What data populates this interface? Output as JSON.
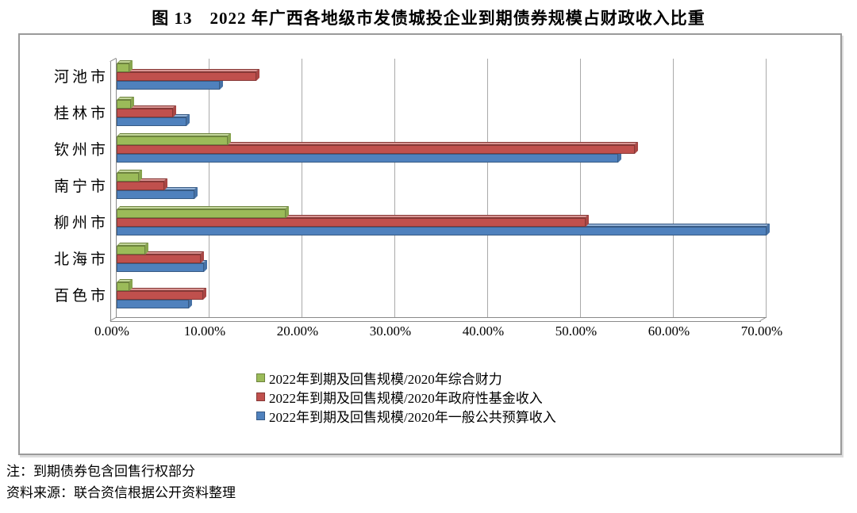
{
  "title": "图 13　2022 年广西各地级市发债城投企业到期债券规模占财政收入比重",
  "notes": [
    "注：到期债券包含回售行权部分",
    "资料来源：联合资信根据公开资料整理"
  ],
  "colors": {
    "gridline": "#aaaaaa",
    "wall": "#8a8a8a",
    "box_border": "#9a9a9a",
    "series_green": "#9BBB59",
    "series_red": "#C0504D",
    "series_blue": "#4F81BD"
  },
  "chart_data": {
    "type": "bar",
    "orientation": "horizontal",
    "title": "图 13　2022 年广西各地级市发债城投企业到期债券规模占财政收入比重",
    "xlabel": "",
    "ylabel": "",
    "xlim": [
      0,
      70
    ],
    "grid": true,
    "legend_position": "bottom",
    "x_ticks": [
      "0.00%",
      "10.00%",
      "20.00%",
      "30.00%",
      "40.00%",
      "50.00%",
      "60.00%",
      "70.00%"
    ],
    "categories": [
      "河池市",
      "桂林市",
      "钦州市",
      "南宁市",
      "柳州市",
      "北海市",
      "百色市"
    ],
    "series": [
      {
        "name": "2022年到期及回售规模/2020年综合财力",
        "color": "#9BBB59",
        "values": [
          1.4,
          1.5,
          12.0,
          2.4,
          18.2,
          3.1,
          1.4
        ]
      },
      {
        "name": "2022年到期及回售规模/2020年政府性基金收入",
        "color": "#C0504D",
        "values": [
          15.0,
          6.1,
          55.8,
          5.1,
          50.5,
          9.1,
          9.3
        ]
      },
      {
        "name": "2022年到期及回售规模/2020年一般公共预算收入",
        "color": "#4F81BD",
        "values": [
          11.1,
          7.5,
          54.0,
          8.4,
          70.0,
          9.4,
          7.8
        ]
      }
    ],
    "values_unit": "percent"
  }
}
